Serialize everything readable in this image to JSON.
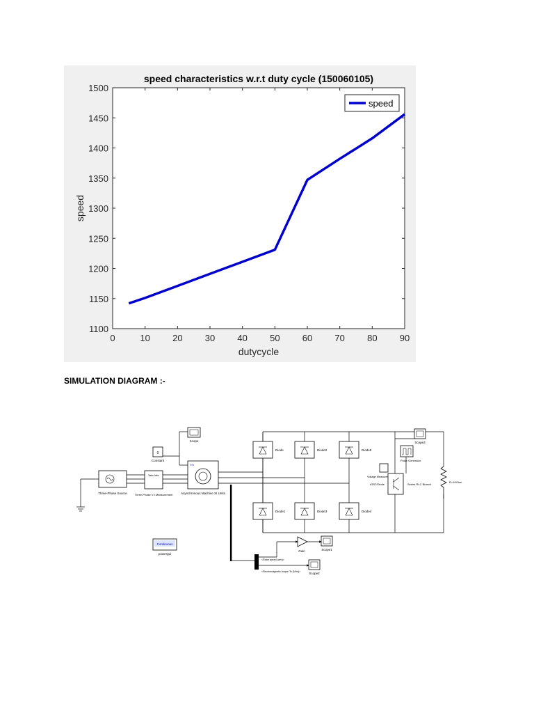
{
  "chart_data": {
    "type": "line",
    "title": "speed characteristics w.r.t duty cycle (150060105)",
    "xlabel": "dutycycle",
    "ylabel": "speed",
    "xlim": [
      0,
      90
    ],
    "ylim": [
      1100,
      1500
    ],
    "xticks": [
      0,
      10,
      20,
      30,
      40,
      50,
      60,
      70,
      80,
      90
    ],
    "yticks": [
      1100,
      1150,
      1200,
      1250,
      1300,
      1350,
      1400,
      1450,
      1500
    ],
    "grid": false,
    "legend_position": "top-right",
    "series": [
      {
        "name": "speed",
        "color": "#0000cc",
        "x": [
          5,
          10,
          20,
          30,
          40,
          50,
          60,
          70,
          80,
          90
        ],
        "y": [
          1142,
          1151,
          1171,
          1191,
          1211,
          1231,
          1347,
          1382,
          1416,
          1456
        ]
      }
    ]
  },
  "section": {
    "heading": "SIMULATION DIAGRAM :-"
  },
  "diagram": {
    "blocks": {
      "source": "Three-Phase Source",
      "vi": "Three-Phase V-I Measurement",
      "vi_inner": "Vabc Iabc",
      "constant": "Constant",
      "constant_value": "0",
      "scope_top": "Scope",
      "machine": "Asynchronous Machine SI Units",
      "machine_port": "Tm",
      "diode": "Diode",
      "diode1": "Diode1",
      "diode2": "Diode2",
      "diode3": "Diode3",
      "diode4": "Diode4",
      "diode5": "Diode5",
      "scope3": "Scope3",
      "pulse": "Pulse Generator",
      "voltage": "Voltage Measurement",
      "igbt": "IGBT/Diode",
      "rlc": "Series RLC Branch",
      "resistor": "R=10Ohm",
      "powergui": "powergui",
      "powergui_inner": "Continuous",
      "gain": "Gain",
      "scope1": "Scope1",
      "scope2": "Scope2",
      "bus1": "<Rotor speed (wm)>",
      "bus2": "<Electromagnetic torque Te (N*m)>"
    }
  }
}
